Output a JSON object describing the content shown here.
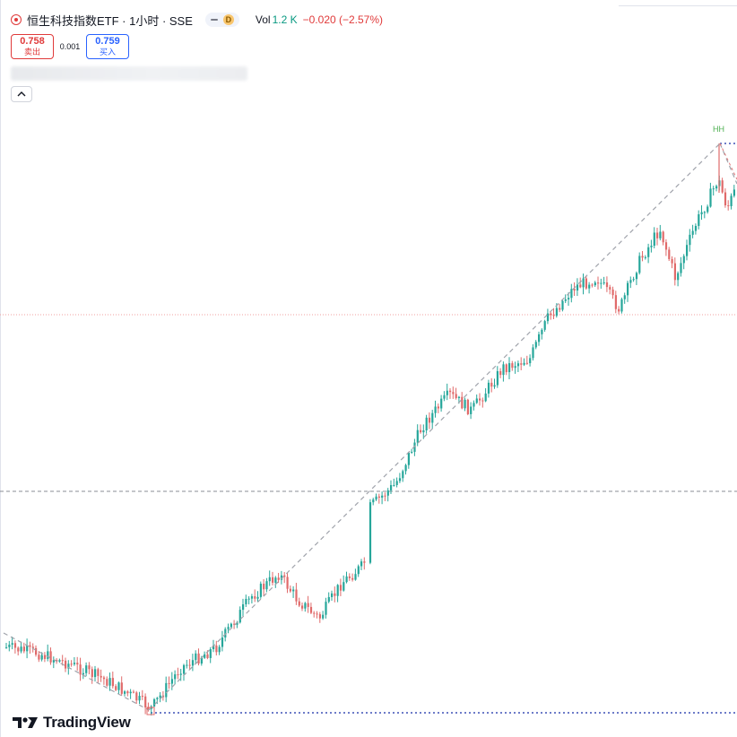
{
  "header": {
    "title": "恒生科技指数ETF · 1小时 · SSE",
    "badge": "D",
    "vol_label": "Vol",
    "vol_value": "1.2 K",
    "change": "−0.020 (−2.57%)"
  },
  "trade": {
    "sell_price": "0.758",
    "sell_label": "卖出",
    "spread": "0.001",
    "buy_price": "0.759",
    "buy_label": "买入"
  },
  "annotations": {
    "swing_label": "HH"
  },
  "branding": {
    "logo_text": "TradingView"
  },
  "colors": {
    "up": "#26a69a",
    "down": "#e06a6a",
    "trend": "#a0a3ab",
    "level": "#3f51b5",
    "accent": "#e03a3a"
  },
  "icons": [
    "symbol-dot-icon",
    "collapse-chevron-icon",
    "tradingview-logo-icon"
  ]
}
